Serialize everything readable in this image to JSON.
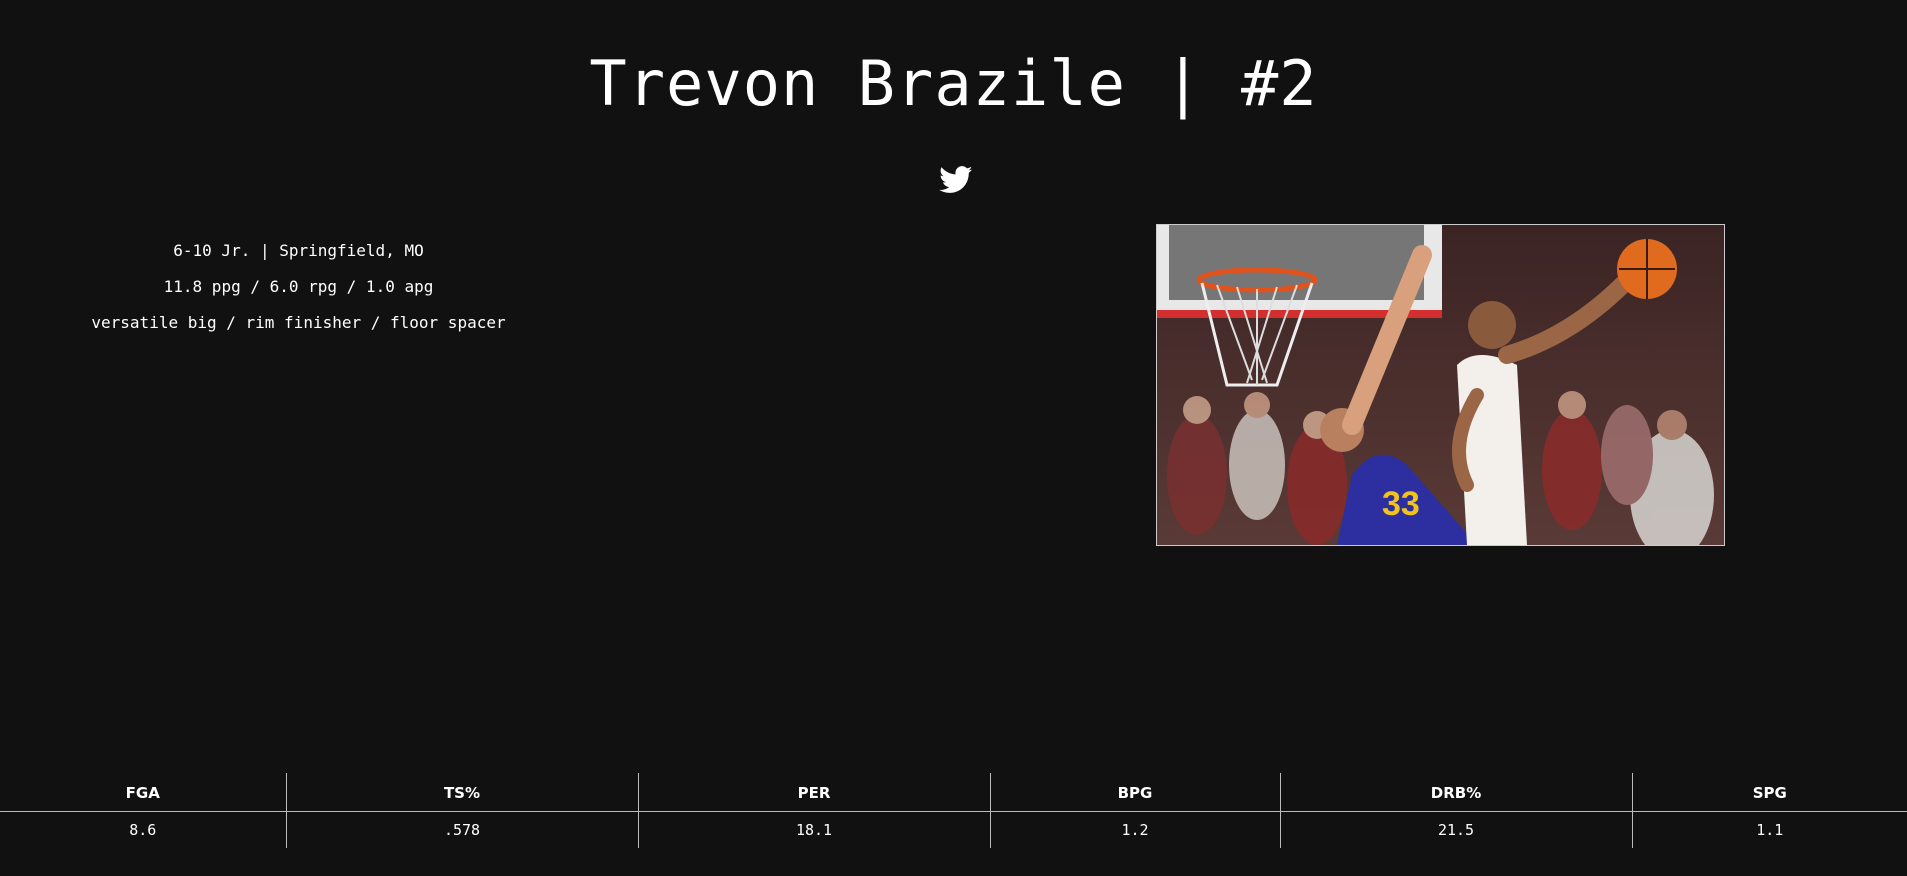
{
  "header": {
    "title": "Trevon Brazile | #2"
  },
  "social": {
    "icon": "twitter-icon"
  },
  "profile": {
    "bio": "6-10 Jr. | Springfield, MO",
    "averages": "11.8 ppg / 6.0 rpg / 1.0 apg",
    "role": "versatile big / rim finisher / floor spacer"
  },
  "photo": {
    "subject": "basketball-dunk-photo"
  },
  "stats": {
    "headers": [
      "FGA",
      "TS%",
      "PER",
      "BPG",
      "DRB%",
      "SPG"
    ],
    "values": [
      "8.6",
      ".578",
      "18.1",
      "1.2",
      "21.5",
      "1.1"
    ]
  },
  "colors": {
    "background": "#111111",
    "text": "#ffffff",
    "rule": "#bbbbbb"
  }
}
